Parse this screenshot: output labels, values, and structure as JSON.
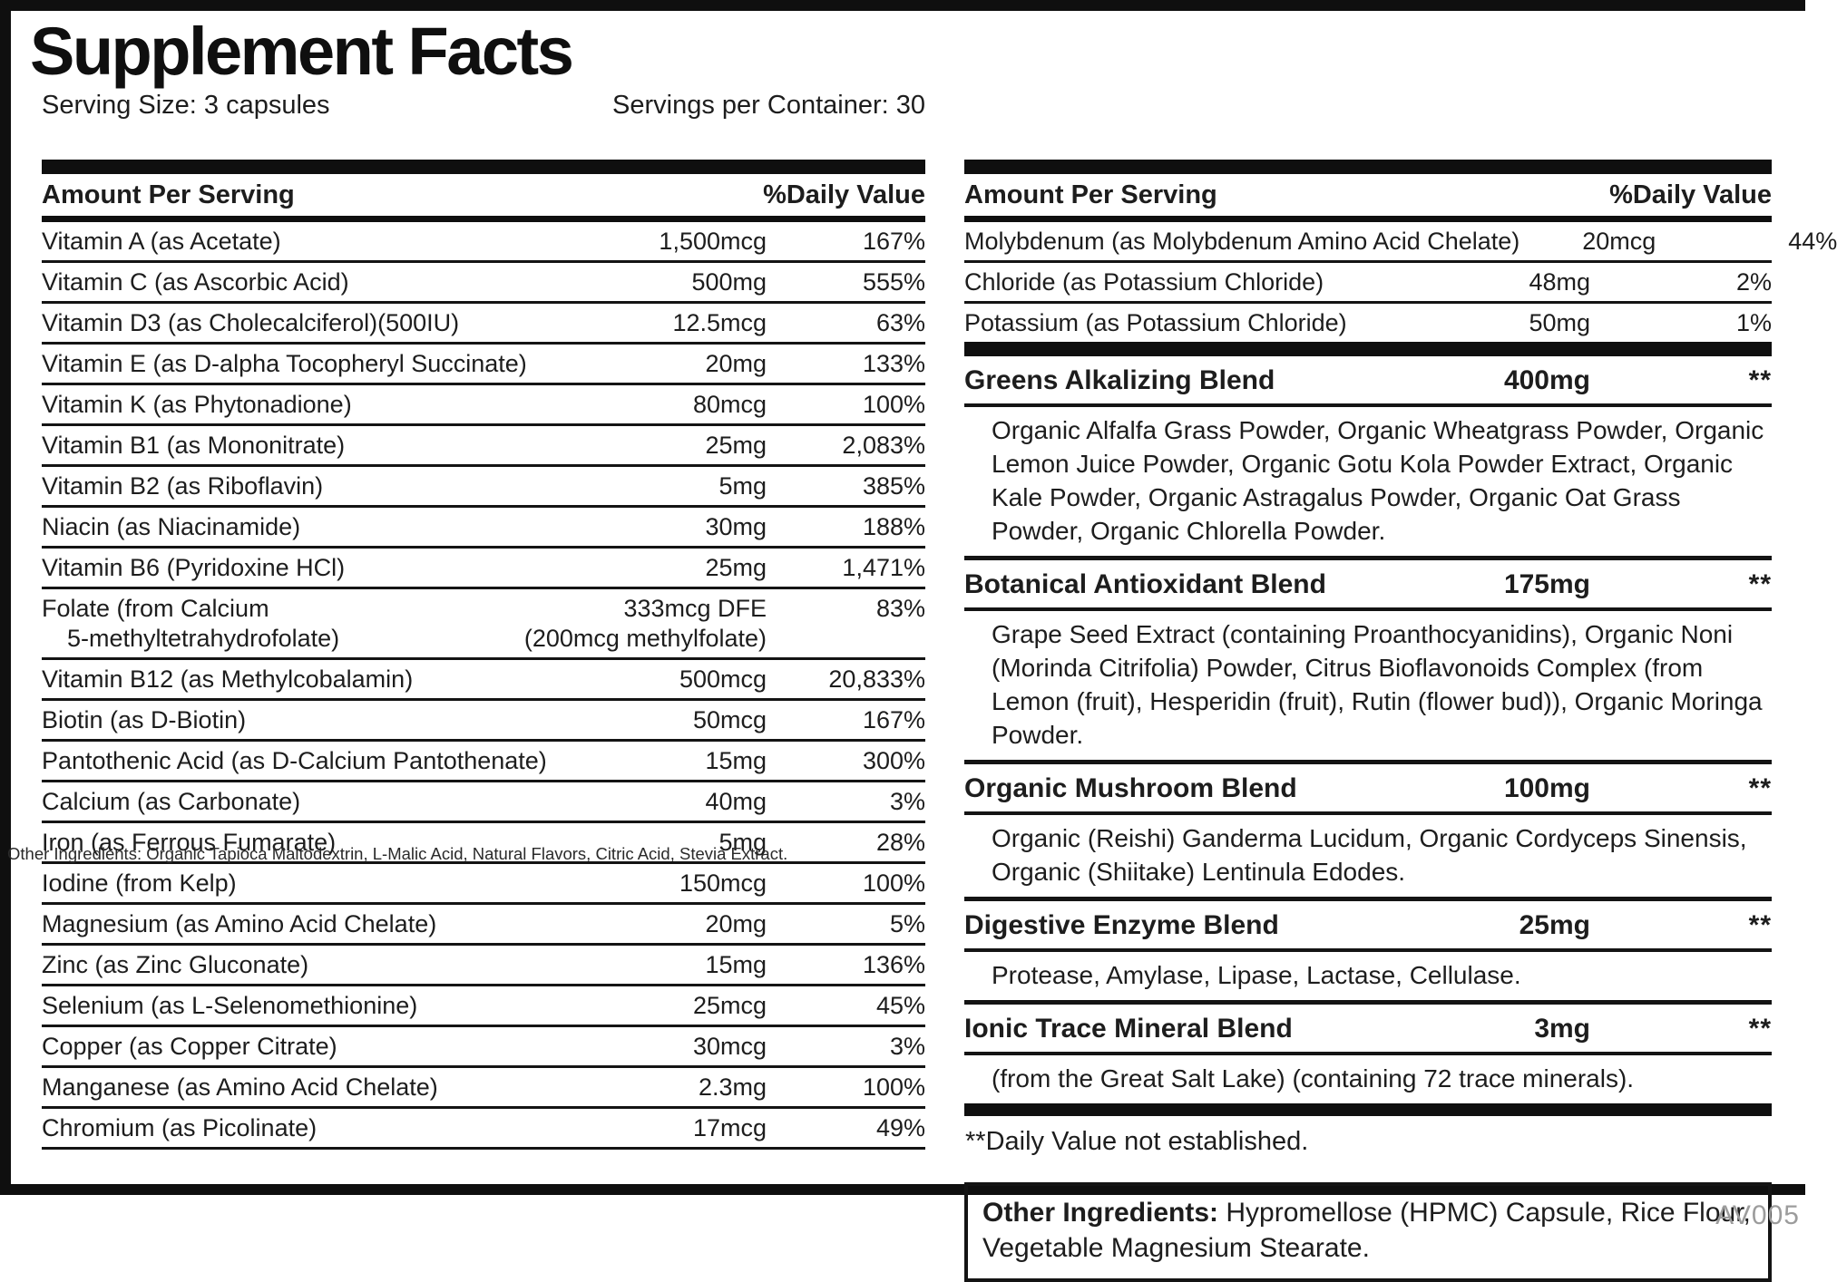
{
  "title": "Supplement Facts",
  "serving_size": "Serving Size: 3 capsules",
  "servings_per_container": "Servings per Container: 30",
  "footer_code": "AV005",
  "colors": {
    "ink": "#1d1d1d",
    "bar": "#0f0f0f",
    "footer_code_gray": "#9c9c9c"
  },
  "left_table": {
    "header_amount": "Amount Per Serving",
    "header_dv": "%Daily Value",
    "rows": [
      {
        "name": "Vitamin A (as Acetate)",
        "amount": "1,500mcg",
        "dv": "167%"
      },
      {
        "name": "Vitamin C (as Ascorbic Acid)",
        "amount": "500mg",
        "dv": "555%"
      },
      {
        "name": "Vitamin D3 (as Cholecalciferol)(500IU)",
        "amount": "12.5mcg",
        "dv": "63%"
      },
      {
        "name": "Vitamin E (as D-alpha Tocopheryl Succinate)",
        "amount": "20mg",
        "dv": "133%"
      },
      {
        "name": "Vitamin K (as Phytonadione)",
        "amount": "80mcg",
        "dv": "100%"
      },
      {
        "name": "Vitamin B1 (as Mononitrate)",
        "amount": "25mg",
        "dv": "2,083%"
      },
      {
        "name": "Vitamin B2 (as Riboflavin)",
        "amount": "5mg",
        "dv": "385%"
      },
      {
        "name": "Niacin (as Niacinamide)",
        "amount": "30mg",
        "dv": "188%"
      },
      {
        "name": "Vitamin B6 (Pyridoxine HCl)",
        "amount": "25mg",
        "dv": "1,471%"
      },
      {
        "name": "Folate (from Calcium",
        "name_line2": "5-methyltetrahydrofolate)",
        "amount": "333mcg DFE",
        "amount_line2": "(200mcg methylfolate)",
        "dv": "83%"
      },
      {
        "name": "Vitamin B12 (as Methylcobalamin)",
        "amount": "500mcg",
        "dv": "20,833%"
      },
      {
        "name": "Biotin (as D-Biotin)",
        "amount": "50mcg",
        "dv": "167%"
      },
      {
        "name": "Pantothenic Acid (as D-Calcium Pantothenate)",
        "amount": "15mg",
        "dv": "300%"
      },
      {
        "name": "Calcium (as Carbonate)",
        "amount": "40mg",
        "dv": "3%"
      },
      {
        "name": "Iron (as Ferrous Fumarate)",
        "amount": "5mg",
        "dv": "28%"
      },
      {
        "name": "Iodine (from Kelp)",
        "amount": "150mcg",
        "dv": "100%"
      },
      {
        "name": "Magnesium (as Amino Acid Chelate)",
        "amount": "20mg",
        "dv": "5%"
      },
      {
        "name": "Zinc (as Zinc Gluconate)",
        "amount": "15mg",
        "dv": "136%"
      },
      {
        "name": "Selenium (as L-Selenomethionine)",
        "amount": "25mcg",
        "dv": "45%"
      },
      {
        "name": "Copper (as Copper Citrate)",
        "amount": "30mcg",
        "dv": "3%"
      },
      {
        "name": "Manganese (as Amino Acid Chelate)",
        "amount": "2.3mg",
        "dv": "100%"
      },
      {
        "name": "Chromium (as Picolinate)",
        "amount": "17mcg",
        "dv": "49%"
      }
    ],
    "overlay_text": "Other Ingredients: Organic Tapioca Maltodextrin, L-Malic Acid, Natural Flavors, Citric Acid, Stevia Extract."
  },
  "right_table": {
    "header_amount": "Amount Per Serving",
    "header_dv": "%Daily Value",
    "rows": [
      {
        "name": "Molybdenum (as Molybdenum Amino Acid Chelate)",
        "amount": "20mcg",
        "dv": "44%"
      },
      {
        "name": "Chloride (as Potassium Chloride)",
        "amount": "48mg",
        "dv": "2%"
      },
      {
        "name": "Potassium (as Potassium Chloride)",
        "amount": "50mg",
        "dv": "1%"
      }
    ],
    "blends": [
      {
        "name": "Greens Alkalizing Blend",
        "amount": "400mg",
        "dv": "**",
        "desc": "Organic Alfalfa Grass Powder, Organic Wheatgrass Powder, Organic Lemon Juice Powder, Organic Gotu Kola Powder Extract, Organic Kale Powder, Organic Astragalus Powder, Organic Oat Grass Powder, Organic Chlorella Powder."
      },
      {
        "name": "Botanical Antioxidant Blend",
        "amount": "175mg",
        "dv": "**",
        "desc": "Grape Seed Extract (containing Proanthocyanidins), Organic Noni (Morinda Citrifolia) Powder, Citrus Bioflavonoids Complex (from Lemon (fruit), Hesperidin (fruit), Rutin (flower bud)), Organic Moringa Powder."
      },
      {
        "name": "Organic Mushroom Blend",
        "amount": "100mg",
        "dv": "**",
        "desc": "Organic (Reishi) Ganderma Lucidum, Organic Cordyceps Sinensis, Organic (Shiitake) Lentinula Edodes."
      },
      {
        "name": "Digestive Enzyme Blend",
        "amount": "25mg",
        "dv": "**",
        "desc": "Protease, Amylase, Lipase, Lactase, Cellulase."
      },
      {
        "name": "Ionic Trace Mineral Blend",
        "amount": "3mg",
        "dv": "**",
        "desc": "(from the Great Salt Lake) (containing 72 trace minerals)."
      }
    ],
    "footnote": "**Daily Value not established.",
    "other_ingredients_label": "Other Ingredients:",
    "other_ingredients_text": "Hypromellose (HPMC) Capsule, Rice Flour, Vegetable Magnesium Stearate."
  }
}
